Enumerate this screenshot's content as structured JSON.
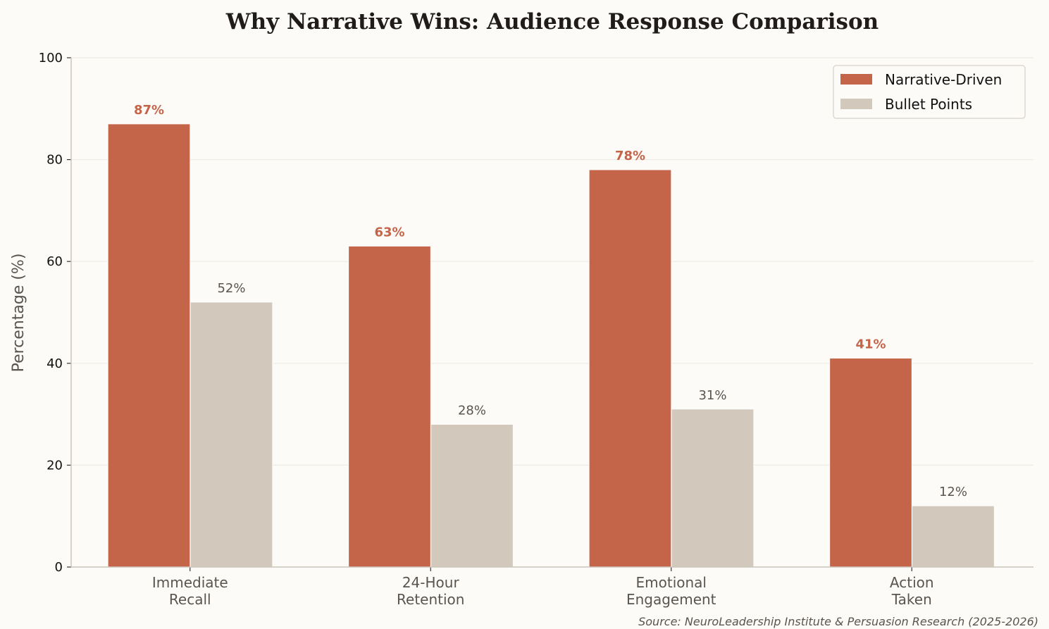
{
  "chart_data": {
    "type": "bar",
    "title": "Why Narrative Wins: Audience Response Comparison",
    "xlabel": "",
    "ylabel": "Percentage (%)",
    "ylim": [
      0,
      100
    ],
    "yticks": [
      0,
      20,
      40,
      60,
      80,
      100
    ],
    "grid": true,
    "legend_placement": "top-right",
    "categories": [
      [
        "Immediate",
        "Recall"
      ],
      [
        "24-Hour",
        "Retention"
      ],
      [
        "Emotional",
        "Engagement"
      ],
      [
        "Action",
        "Taken"
      ]
    ],
    "series": [
      {
        "name": "Narrative-Driven",
        "values": [
          87,
          63,
          78,
          41
        ],
        "labels": [
          "87%",
          "63%",
          "78%",
          "41%"
        ],
        "color": "#C4654A"
      },
      {
        "name": "Bullet Points",
        "values": [
          52,
          28,
          31,
          12
        ],
        "labels": [
          "52%",
          "28%",
          "31%",
          "12%"
        ],
        "color": "#D2C9BC"
      }
    ],
    "source": "Source: NeuroLeadership Institute & Persuasion Research (2025-2026)"
  }
}
